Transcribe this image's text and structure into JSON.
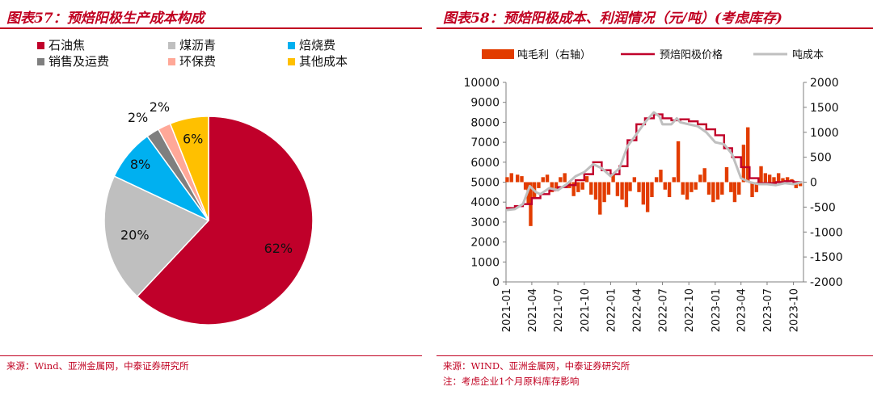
{
  "left": {
    "title": "图表57：预焙阳极生产成本构成",
    "source": "来源：Wind、亚洲金属网，中泰证券研究所"
  },
  "right": {
    "title": "图表58：预焙阳极成本、利润情况（元/吨）(考虑库存)",
    "source": "来源：WIND、亚洲金属网，中泰证券研究所",
    "note": "注：考虑企业1个月原料库存影响"
  },
  "chart_data": [
    {
      "type": "pie",
      "title": "",
      "slices": [
        {
          "label": "石油焦",
          "value": 62,
          "value_label": "62%",
          "color": "#c0002a"
        },
        {
          "label": "煤沥青",
          "value": 20,
          "value_label": "20%",
          "color": "#bfbfbf"
        },
        {
          "label": "焙烧费",
          "value": 8,
          "value_label": "8%",
          "color": "#00b0f0"
        },
        {
          "label": "销售及运费",
          "value": 2,
          "value_label": "2%",
          "color": "#7f7f7f"
        },
        {
          "label": "环保费",
          "value": 2,
          "value_label": "2%",
          "color": "#ffa898"
        },
        {
          "label": "其他成本",
          "value": 6,
          "value_label": "6%",
          "color": "#ffc000"
        }
      ],
      "legend_position": "top"
    },
    {
      "type": "line",
      "title": "",
      "legend_position": "top",
      "x_ticks": [
        "2021-01",
        "2021-04",
        "2021-07",
        "2021-10",
        "2022-01",
        "2022-04",
        "2022-07",
        "2022-10",
        "2023-01",
        "2023-04",
        "2023-07",
        "2023-10"
      ],
      "y_left": {
        "min": 0,
        "max": 10000,
        "step": 1000,
        "ticks": [
          "0",
          "1000",
          "2000",
          "3000",
          "4000",
          "5000",
          "6000",
          "7000",
          "8000",
          "9000",
          "10000"
        ]
      },
      "y_right": {
        "min": -2000,
        "max": 2000,
        "step": 500,
        "ticks": [
          "-2000",
          "-1500",
          "-1000",
          "-500",
          "0",
          "500",
          "1000",
          "1500",
          "2000"
        ]
      },
      "series": [
        {
          "name": "吨毛利（右轴）",
          "kind": "bar",
          "axis": "right",
          "color": "#e23c00",
          "points": [
            [
              "2021-01-05",
              100
            ],
            [
              "2021-01-20",
              180
            ],
            [
              "2021-02-10",
              150
            ],
            [
              "2021-02-25",
              120
            ],
            [
              "2021-03-10",
              -150
            ],
            [
              "2021-03-20",
              -420
            ],
            [
              "2021-03-28",
              -880
            ],
            [
              "2021-04-10",
              -300
            ],
            [
              "2021-04-25",
              -120
            ],
            [
              "2021-05-10",
              100
            ],
            [
              "2021-05-25",
              150
            ],
            [
              "2021-06-10",
              -200
            ],
            [
              "2021-06-25",
              -150
            ],
            [
              "2021-07-10",
              100
            ],
            [
              "2021-07-25",
              180
            ],
            [
              "2021-08-10",
              -120
            ],
            [
              "2021-08-25",
              -280
            ],
            [
              "2021-09-10",
              -200
            ],
            [
              "2021-09-25",
              -150
            ],
            [
              "2021-10-10",
              120
            ],
            [
              "2021-10-25",
              -250
            ],
            [
              "2021-11-10",
              -350
            ],
            [
              "2021-11-25",
              -650
            ],
            [
              "2021-12-10",
              -400
            ],
            [
              "2021-12-25",
              -250
            ],
            [
              "2022-01-10",
              150
            ],
            [
              "2022-01-25",
              -280
            ],
            [
              "2022-02-10",
              -350
            ],
            [
              "2022-02-25",
              -500
            ],
            [
              "2022-03-10",
              -180
            ],
            [
              "2022-03-25",
              100
            ],
            [
              "2022-04-10",
              -200
            ],
            [
              "2022-04-25",
              -450
            ],
            [
              "2022-05-10",
              -600
            ],
            [
              "2022-05-25",
              -300
            ],
            [
              "2022-06-10",
              100
            ],
            [
              "2022-06-25",
              250
            ],
            [
              "2022-07-10",
              -150
            ],
            [
              "2022-07-25",
              -300
            ],
            [
              "2022-08-10",
              100
            ],
            [
              "2022-08-25",
              820
            ],
            [
              "2022-09-10",
              -250
            ],
            [
              "2022-09-25",
              -350
            ],
            [
              "2022-10-10",
              -200
            ],
            [
              "2022-10-25",
              -150
            ],
            [
              "2022-11-10",
              150
            ],
            [
              "2022-11-25",
              280
            ],
            [
              "2022-12-10",
              -250
            ],
            [
              "2022-12-25",
              -400
            ],
            [
              "2023-01-10",
              -350
            ],
            [
              "2023-01-25",
              -250
            ],
            [
              "2023-02-10",
              300
            ],
            [
              "2023-02-25",
              -200
            ],
            [
              "2023-03-10",
              -400
            ],
            [
              "2023-03-25",
              -250
            ],
            [
              "2023-04-10",
              750
            ],
            [
              "2023-04-25",
              1100
            ],
            [
              "2023-05-10",
              -300
            ],
            [
              "2023-05-25",
              -200
            ],
            [
              "2023-06-10",
              320
            ],
            [
              "2023-06-25",
              180
            ],
            [
              "2023-07-10",
              150
            ],
            [
              "2023-07-25",
              100
            ],
            [
              "2023-08-10",
              180
            ],
            [
              "2023-08-25",
              80
            ],
            [
              "2023-09-10",
              100
            ],
            [
              "2023-09-25",
              60
            ],
            [
              "2023-10-10",
              -120
            ],
            [
              "2023-10-25",
              -80
            ]
          ]
        },
        {
          "name": "预焙阳极价格",
          "kind": "line",
          "axis": "left",
          "color": "#c0002a",
          "step": true,
          "points": [
            [
              "2021-01-01",
              3700
            ],
            [
              "2021-02-01",
              3800
            ],
            [
              "2021-03-01",
              3900
            ],
            [
              "2021-04-01",
              4200
            ],
            [
              "2021-05-01",
              4400
            ],
            [
              "2021-06-01",
              4600
            ],
            [
              "2021-07-01",
              4750
            ],
            [
              "2021-08-01",
              4850
            ],
            [
              "2021-09-01",
              5100
            ],
            [
              "2021-10-01",
              5400
            ],
            [
              "2021-11-01",
              6000
            ],
            [
              "2021-12-01",
              5600
            ],
            [
              "2022-01-01",
              5400
            ],
            [
              "2022-02-01",
              5800
            ],
            [
              "2022-03-01",
              7100
            ],
            [
              "2022-04-01",
              7900
            ],
            [
              "2022-05-01",
              8200
            ],
            [
              "2022-06-01",
              8400
            ],
            [
              "2022-07-01",
              8200
            ],
            [
              "2022-08-01",
              8100
            ],
            [
              "2022-09-01",
              8150
            ],
            [
              "2022-10-01",
              8050
            ],
            [
              "2022-11-01",
              7900
            ],
            [
              "2022-12-01",
              7650
            ],
            [
              "2023-01-01",
              7350
            ],
            [
              "2023-02-01",
              6700
            ],
            [
              "2023-03-01",
              6250
            ],
            [
              "2023-04-01",
              5750
            ],
            [
              "2023-05-01",
              5200
            ],
            [
              "2023-06-01",
              4950
            ],
            [
              "2023-07-01",
              4950
            ],
            [
              "2023-08-01",
              5000
            ],
            [
              "2023-09-01",
              5050
            ],
            [
              "2023-10-01",
              5000
            ],
            [
              "2023-10-31",
              5000
            ]
          ]
        },
        {
          "name": "吨成本",
          "kind": "line",
          "axis": "left",
          "color": "#bfbfbf",
          "points": [
            [
              "2021-01-01",
              3600
            ],
            [
              "2021-02-01",
              3650
            ],
            [
              "2021-03-01",
              3900
            ],
            [
              "2021-03-25",
              4800
            ],
            [
              "2021-04-15",
              4500
            ],
            [
              "2021-05-01",
              4400
            ],
            [
              "2021-06-01",
              4700
            ],
            [
              "2021-07-01",
              4600
            ],
            [
              "2021-08-01",
              4900
            ],
            [
              "2021-09-01",
              5300
            ],
            [
              "2021-10-01",
              5500
            ],
            [
              "2021-11-01",
              5900
            ],
            [
              "2021-12-01",
              5700
            ],
            [
              "2022-01-01",
              5300
            ],
            [
              "2022-02-01",
              5700
            ],
            [
              "2022-03-01",
              6800
            ],
            [
              "2022-04-01",
              7400
            ],
            [
              "2022-05-01",
              8000
            ],
            [
              "2022-06-01",
              8500
            ],
            [
              "2022-06-20",
              8300
            ],
            [
              "2022-07-01",
              7900
            ],
            [
              "2022-08-01",
              7900
            ],
            [
              "2022-08-20",
              8200
            ],
            [
              "2022-09-01",
              8000
            ],
            [
              "2022-10-01",
              7900
            ],
            [
              "2022-11-01",
              7800
            ],
            [
              "2022-12-01",
              7500
            ],
            [
              "2023-01-01",
              7000
            ],
            [
              "2023-02-01",
              6900
            ],
            [
              "2023-03-01",
              6400
            ],
            [
              "2023-04-01",
              5200
            ],
            [
              "2023-05-01",
              5000
            ],
            [
              "2023-06-01",
              4900
            ],
            [
              "2023-07-01",
              4900
            ],
            [
              "2023-08-01",
              4850
            ],
            [
              "2023-09-01",
              4950
            ],
            [
              "2023-10-01",
              4900
            ],
            [
              "2023-10-31",
              5000
            ]
          ]
        }
      ]
    }
  ]
}
